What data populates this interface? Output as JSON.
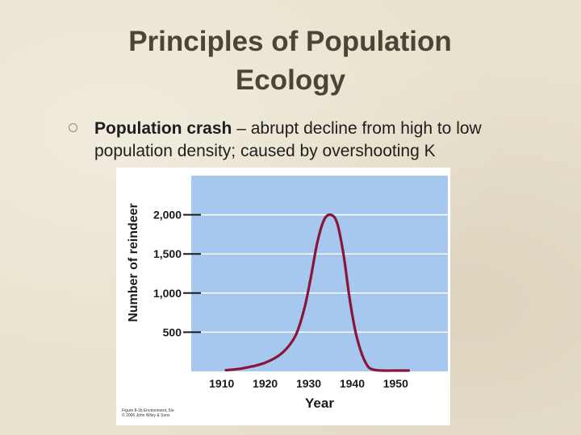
{
  "title": {
    "line1": "Principles of Population",
    "line2": "Ecology"
  },
  "bullet": {
    "term": "Population crash",
    "text": " – abrupt decline from high to low population density; caused by overshooting K"
  },
  "figure_credit": {
    "line1": "Figure 8-1b Environment, 5/e",
    "line2": "© 2006 John Wiley & Sons"
  },
  "colors": {
    "plot_bg": "#a6c8ee",
    "curve": "#8a1538",
    "grid": "#ffffff"
  },
  "chart_data": {
    "type": "line",
    "xlabel": "Year",
    "ylabel": "Number of reindeer",
    "xlim": [
      1903,
      1962
    ],
    "ylim": [
      0,
      2500
    ],
    "x_ticks": [
      1910,
      1920,
      1930,
      1940,
      1950
    ],
    "y_ticks": [
      500,
      1000,
      1500,
      2000
    ],
    "x_tick_labels": [
      "1910",
      "1920",
      "1930",
      "1940",
      "1950"
    ],
    "y_tick_labels": [
      "500",
      "1,000",
      "1,500",
      "2,000"
    ],
    "grid": "horizontal",
    "series": [
      {
        "x": [
          1911,
          1915,
          1920,
          1924,
          1927,
          1929,
          1930.5,
          1932,
          1933.5,
          1935,
          1936.5,
          1938,
          1939.5,
          1941,
          1943,
          1945,
          1950,
          1953
        ],
        "y": [
          15,
          40,
          110,
          240,
          460,
          800,
          1200,
          1650,
          1930,
          2000,
          1900,
          1500,
          900,
          450,
          120,
          20,
          10,
          10
        ]
      }
    ]
  }
}
